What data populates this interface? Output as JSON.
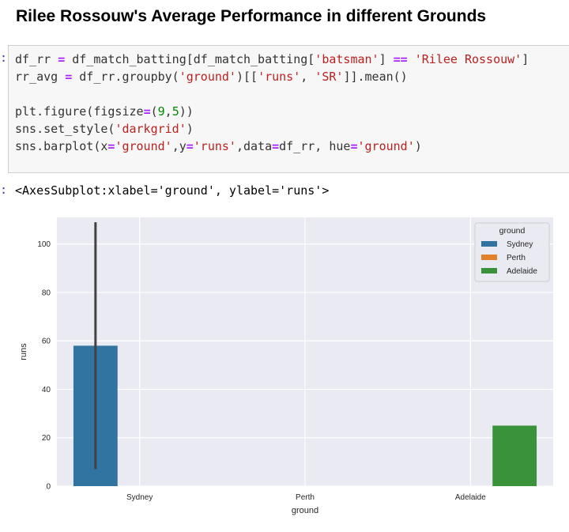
{
  "heading": "Rilee Rossouw's Average Performance in different Grounds",
  "prompt_mark": ":",
  "code": {
    "l1_a": "df_rr ",
    "l1_b": "=",
    "l1_c": " df_match_batting[df_match_batting[",
    "l1_d": "'batsman'",
    "l1_e": "] ",
    "l1_f": "==",
    "l1_g": " ",
    "l1_h": "'Rilee Rossouw'",
    "l1_i": "]",
    "l2_a": "rr_avg ",
    "l2_b": "=",
    "l2_c": " df_rr.groupby(",
    "l2_d": "'ground'",
    "l2_e": ")[[",
    "l2_f": "'runs'",
    "l2_g": ", ",
    "l2_h": "'SR'",
    "l2_i": "]].mean()",
    "l4_a": "plt.figure(figsize",
    "l4_b": "=",
    "l4_c": "(",
    "l4_d": "9",
    "l4_e": ",",
    "l4_f": "5",
    "l4_g": "))",
    "l5_a": "sns.set_style(",
    "l5_b": "'darkgrid'",
    "l5_c": ")",
    "l6_a": "sns.barplot(x",
    "l6_b": "=",
    "l6_c": "'ground'",
    "l6_d": ",y",
    "l6_e": "=",
    "l6_f": "'runs'",
    "l6_g": ",data",
    "l6_h": "=",
    "l6_i": "df_rr, hue",
    "l6_j": "=",
    "l6_k": "'ground'",
    "l6_l": ")"
  },
  "output_text": "<AxesSubplot:xlabel='ground', ylabel='runs'>",
  "chart_data": {
    "type": "bar",
    "categories": [
      "Sydney",
      "Perth",
      "Adelaide"
    ],
    "series": [
      {
        "name": "Sydney",
        "values": [
          58,
          null,
          null
        ],
        "ci": [
          7,
          109
        ],
        "color": "#3274a1"
      },
      {
        "name": "Perth",
        "values": [
          null,
          null,
          null
        ],
        "color": "#e1812c"
      },
      {
        "name": "Adelaide",
        "values": [
          null,
          null,
          25
        ],
        "color": "#3a923a"
      }
    ],
    "xlabel": "ground",
    "ylabel": "runs",
    "ylim": [
      0,
      111
    ],
    "yticks": [
      0,
      20,
      40,
      60,
      80,
      100
    ],
    "grid": true,
    "legend_title": "ground",
    "legend_position": "top-right",
    "background_color": "#eaeaf2",
    "errorbar_color": "#424242"
  }
}
